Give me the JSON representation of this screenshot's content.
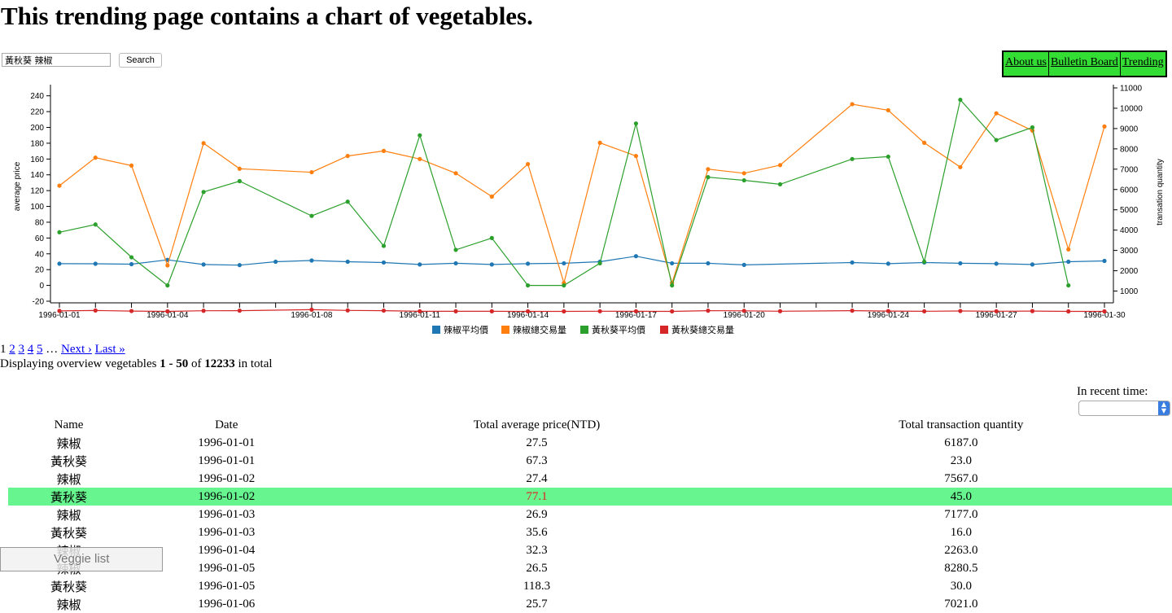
{
  "page": {
    "title": "This trending page contains a chart of vegetables."
  },
  "search": {
    "value": "黃秋葵 辣椒",
    "button_label": "Search"
  },
  "nav": [
    {
      "label": "About us"
    },
    {
      "label": "Bulletin Board"
    },
    {
      "label": "Trending"
    }
  ],
  "chart_data": {
    "type": "line",
    "x_tick_labels": [
      "1996-01-01",
      "1996-01-04",
      "1996-01-08",
      "1996-01-11",
      "1996-01-14",
      "1996-01-17",
      "1996-01-20",
      "1996-01-24",
      "1996-01-27",
      "1996-01-30"
    ],
    "x_tick_index": [
      0,
      3,
      7,
      10,
      13,
      16,
      19,
      23,
      26,
      29
    ],
    "ylabel_left": "average price",
    "ylabel_right": "transation quantity",
    "ylim_left": [
      -20,
      250
    ],
    "ylim_right": [
      500,
      11000
    ],
    "yticks_left": [
      -20,
      0,
      20,
      40,
      60,
      80,
      100,
      120,
      140,
      160,
      180,
      200,
      220,
      240
    ],
    "yticks_right": [
      1000,
      2000,
      3000,
      4000,
      5000,
      6000,
      7000,
      8000,
      9000,
      10000,
      11000
    ],
    "series": [
      {
        "name": "辣椒平均價",
        "color": "#1f77b4",
        "axis": "left",
        "values": [
          27.5,
          27.4,
          26.9,
          32.3,
          26.5,
          25.7,
          30,
          31.5,
          30,
          29,
          26.5,
          28,
          26.5,
          27.5,
          28,
          30,
          37,
          28,
          28,
          26,
          null,
          null,
          29,
          27.5,
          29,
          28,
          27.5,
          26.5,
          30,
          31
        ]
      },
      {
        "name": "辣椒總交易量",
        "color": "#ff7f0e",
        "axis": "right",
        "values": [
          6187,
          7567,
          7177,
          2263,
          8280.5,
          7021,
          null,
          6850,
          7650,
          7900,
          7500,
          6800,
          5650,
          7250,
          1400,
          8300,
          7650,
          1400,
          7000,
          6800,
          7200,
          null,
          10200,
          9900,
          8300,
          7100,
          9750,
          8900,
          3050,
          9100
        ]
      },
      {
        "name": "黃秋葵平均價",
        "color": "#2ca02c",
        "axis": "left",
        "values": [
          67.3,
          77.1,
          35.6,
          0,
          118.3,
          132,
          null,
          88,
          106,
          50,
          190,
          45,
          60,
          0,
          0,
          28,
          205,
          0,
          137,
          133,
          128,
          null,
          160,
          163,
          30,
          235,
          184,
          200,
          0,
          null
        ]
      },
      {
        "name": "黃秋葵總交易量",
        "color": "#d62728",
        "axis": "right",
        "values": [
          23,
          45,
          16,
          0,
          30,
          35,
          null,
          82,
          48,
          36,
          5,
          4,
          5,
          0,
          0,
          6,
          5,
          0,
          35,
          27,
          9,
          null,
          35,
          17,
          3,
          18,
          6,
          14,
          0,
          0
        ]
      }
    ]
  },
  "pagination": {
    "pages": [
      "1",
      "2",
      "3",
      "4",
      "5"
    ],
    "ellipsis": "…",
    "next": "Next ›",
    "last": "Last »"
  },
  "summary": {
    "prefix": "Displaying overview vegetables ",
    "range": "1 - 50",
    "of": " of ",
    "total": "12233",
    "suffix": " in total"
  },
  "filter": {
    "label": "In recent time:",
    "selected": ""
  },
  "table": {
    "headers": [
      "Name",
      "Date",
      "Total average price(NTD)",
      "Total transaction quantity"
    ],
    "rows": [
      [
        "辣椒",
        "1996-01-01",
        "27.5",
        "6187.0"
      ],
      [
        "黃秋葵",
        "1996-01-01",
        "67.3",
        "23.0"
      ],
      [
        "辣椒",
        "1996-01-02",
        "27.4",
        "7567.0"
      ],
      [
        "黃秋葵",
        "1996-01-02",
        "77.1",
        "45.0"
      ],
      [
        "辣椒",
        "1996-01-03",
        "26.9",
        "7177.0"
      ],
      [
        "黃秋葵",
        "1996-01-03",
        "35.6",
        "16.0"
      ],
      [
        "辣椒",
        "1996-01-04",
        "32.3",
        "2263.0"
      ],
      [
        "辣椒",
        "1996-01-05",
        "26.5",
        "8280.5"
      ],
      [
        "黃秋葵",
        "1996-01-05",
        "118.3",
        "30.0"
      ],
      [
        "辣椒",
        "1996-01-06",
        "25.7",
        "7021.0"
      ]
    ],
    "highlight_row": 3
  },
  "veggie_button": {
    "label": "Veggie list"
  }
}
